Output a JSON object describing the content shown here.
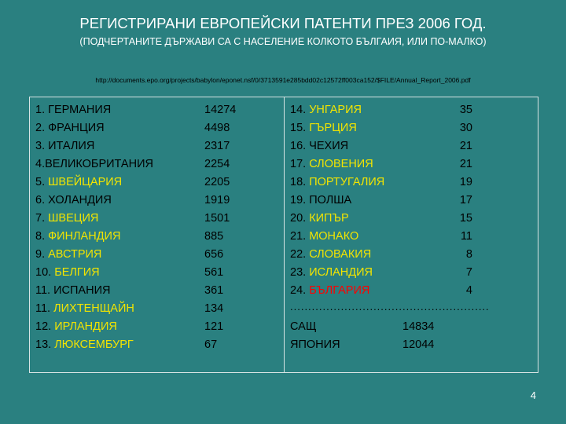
{
  "title": "РЕГИСТРИРАНИ ЕВРОПЕЙСКИ ПАТЕНТИ ПРЕЗ 2006 ГОД.",
  "subtitle": "(ПОДЧЕРТАНИТЕ ДЪРЖАВИ СА С НАСЕЛЕНИЕ КОЛКОТО БЪЛГАИЯ, ИЛИ ПО-МАЛКО)",
  "url": "http://documents.epo.org/projects/babylon/eponet.nsf/0/3713591e285bdd02c12572ff003ca152/$FILE/Annual_Report_2006.pdf",
  "left_column": [
    {
      "prefix": "1. ",
      "name": "ГЕРМАНИЯ",
      "value": "14274",
      "highlight": false
    },
    {
      "prefix": "2. ",
      "name": "ФРАНЦИЯ",
      "value": "4498",
      "highlight": false
    },
    {
      "prefix": "3. ",
      "name": "ИТАЛИЯ",
      "value": "2317",
      "highlight": false
    },
    {
      "prefix": "4.",
      "name": "ВЕЛИКОБРИТАНИЯ",
      "value": "2254",
      "highlight": false
    },
    {
      "prefix": "5. ",
      "name": "ШВЕЙЦАРИЯ",
      "value": "2205",
      "highlight": true
    },
    {
      "prefix": "6. ",
      "name": "ХОЛАНДИЯ",
      "value": "1919",
      "highlight": false
    },
    {
      "prefix": "7. ",
      "name": "ШВЕЦИЯ",
      "value": "1501",
      "highlight": true
    },
    {
      "prefix": "8. ",
      "name": "ФИНЛАНДИЯ",
      "value": "885",
      "highlight": true
    },
    {
      "prefix": "9. ",
      "name": "АВСТРИЯ",
      "value": "656",
      "highlight": true
    },
    {
      "prefix": "10. ",
      "name": "БЕЛГИЯ",
      "value": "561",
      "highlight": true
    },
    {
      "prefix": "11. ",
      "name": "ИСПАНИЯ",
      "value": "361",
      "highlight": false
    },
    {
      "prefix": "11. ",
      "name": "ЛИХТЕНЩАЙН",
      "value": "134",
      "highlight": true
    },
    {
      "prefix": "12. ",
      "name": "ИРЛАНДИЯ",
      "value": "121",
      "highlight": true
    },
    {
      "prefix": "13. ",
      "name": "ЛЮКСЕМБУРГ",
      "value": "67",
      "highlight": true
    }
  ],
  "right_column": [
    {
      "prefix": "14. ",
      "name": "УНГАРИЯ",
      "value": "35",
      "highlight": true
    },
    {
      "prefix": "15. ",
      "name": "ГЪРЦИЯ",
      "value": "30",
      "highlight": true
    },
    {
      "prefix": "16. ",
      "name": "ЧЕХИЯ",
      "value": "21",
      "highlight": false
    },
    {
      "prefix": "17. ",
      "name": "СЛОВЕНИЯ",
      "value": "21",
      "highlight": true
    },
    {
      "prefix": "18. ",
      "name": "ПОРТУГАЛИЯ",
      "value": "19",
      "highlight": true
    },
    {
      "prefix": "19. ",
      "name": "ПОЛША",
      "value": "17",
      "highlight": false
    },
    {
      "prefix": "20. ",
      "name": "КИПЪР",
      "value": "15",
      "highlight": true
    },
    {
      "prefix": "21. ",
      "name": "МОНАКО",
      "value": "11",
      "highlight": true
    },
    {
      "prefix": "22. ",
      "name": "СЛОВАКИЯ",
      "value": "8",
      "highlight": true
    },
    {
      "prefix": "23. ",
      "name": "ИСЛАНДИЯ",
      "value": "7",
      "highlight": true
    },
    {
      "prefix": "24. ",
      "name": "БЪЛГАРИЯ",
      "value": "4",
      "highlight": "red"
    }
  ],
  "separator": "............................................................",
  "others": [
    {
      "name": "САЩ",
      "value": "14834"
    },
    {
      "name": "ЯПОНИЯ",
      "value": "12044"
    }
  ],
  "colors": {
    "background": "#2a8080",
    "highlight": "#f2e400",
    "bulgaria": "#ff0000"
  },
  "page_number": "4"
}
